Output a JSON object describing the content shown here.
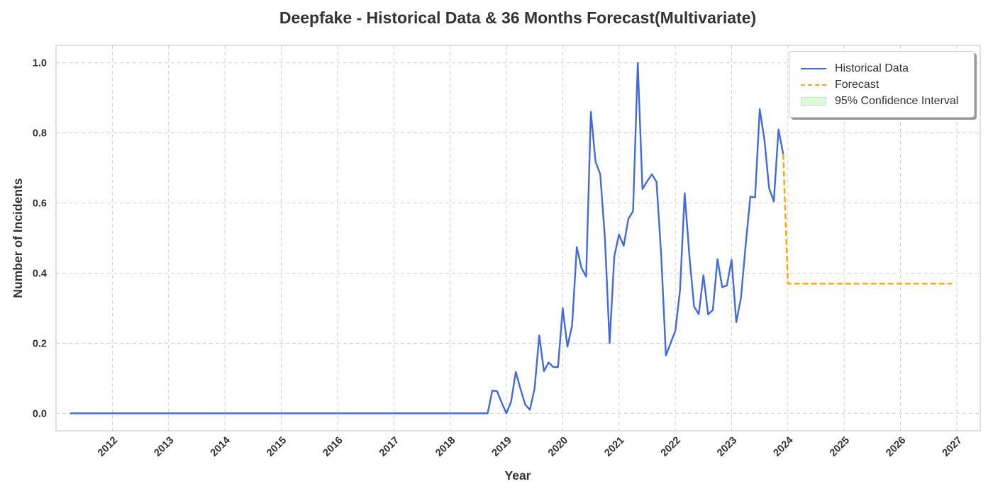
{
  "chart_data": {
    "type": "line",
    "title": "Deepfake - Historical Data & 36 Months Forecast(Multivariate)",
    "xlabel": "Year",
    "ylabel": "Number of Incidents",
    "xlim": [
      "2011-01",
      "2027-06"
    ],
    "ylim": [
      -0.05,
      1.05
    ],
    "x_ticks": [
      "2012",
      "2013",
      "2014",
      "2015",
      "2016",
      "2017",
      "2018",
      "2019",
      "2020",
      "2021",
      "2022",
      "2023",
      "2024",
      "2025",
      "2026",
      "2027"
    ],
    "y_ticks": [
      "0.0",
      "0.2",
      "0.4",
      "0.6",
      "0.8",
      "1.0"
    ],
    "grid": true,
    "legend_position": "top-right",
    "legend": [
      "Historical Data",
      "Forecast",
      "95% Confidence Interval"
    ],
    "series": [
      {
        "name": "Historical Data",
        "color": "#4169e1",
        "style": "solid",
        "x": [
          "2011-04",
          "2018-09",
          "2018-10",
          "2018-11",
          "2018-12",
          "2019-01",
          "2019-02",
          "2019-03",
          "2019-04",
          "2019-05",
          "2019-06",
          "2019-07",
          "2019-08",
          "2019-09",
          "2019-10",
          "2019-11",
          "2019-12",
          "2020-01",
          "2020-02",
          "2020-03",
          "2020-04",
          "2020-05",
          "2020-06",
          "2020-07",
          "2020-08",
          "2020-09",
          "2020-10",
          "2020-11",
          "2020-12",
          "2021-01",
          "2021-02",
          "2021-03",
          "2021-04",
          "2021-05",
          "2021-06",
          "2021-07",
          "2021-08",
          "2021-09",
          "2021-10",
          "2021-11",
          "2021-12",
          "2022-01",
          "2022-02",
          "2022-03",
          "2022-04",
          "2022-05",
          "2022-06",
          "2022-07",
          "2022-08",
          "2022-09",
          "2022-10",
          "2022-11",
          "2022-12",
          "2023-01",
          "2023-02",
          "2023-03",
          "2023-04",
          "2023-05",
          "2023-06",
          "2023-07",
          "2023-08",
          "2023-09",
          "2023-10",
          "2023-11",
          "2023-12"
        ],
        "values": [
          0.0,
          0.0,
          0.065,
          0.063,
          0.03,
          0.0,
          0.033,
          0.118,
          0.07,
          0.025,
          0.01,
          0.07,
          0.222,
          0.12,
          0.145,
          0.132,
          0.132,
          0.3,
          0.19,
          0.25,
          0.474,
          0.415,
          0.39,
          0.86,
          0.718,
          0.682,
          0.5,
          0.2,
          0.448,
          0.51,
          0.478,
          0.555,
          0.577,
          1.0,
          0.64,
          0.662,
          0.682,
          0.66,
          0.45,
          0.165,
          0.2,
          0.235,
          0.35,
          0.628,
          0.45,
          0.305,
          0.283,
          0.394,
          0.282,
          0.295,
          0.44,
          0.36,
          0.365,
          0.438,
          0.26,
          0.33,
          0.48,
          0.618,
          0.616,
          0.868,
          0.78,
          0.642,
          0.605,
          0.81,
          0.74
        ]
      },
      {
        "name": "Forecast",
        "color": "#ffa500",
        "style": "dashed",
        "x": [
          "2023-12",
          "2024-01",
          "2026-12"
        ],
        "values": [
          0.74,
          0.37,
          0.37
        ]
      }
    ],
    "confidence_interval": {
      "name": "95% Confidence Interval",
      "color": "#90ee90"
    }
  }
}
